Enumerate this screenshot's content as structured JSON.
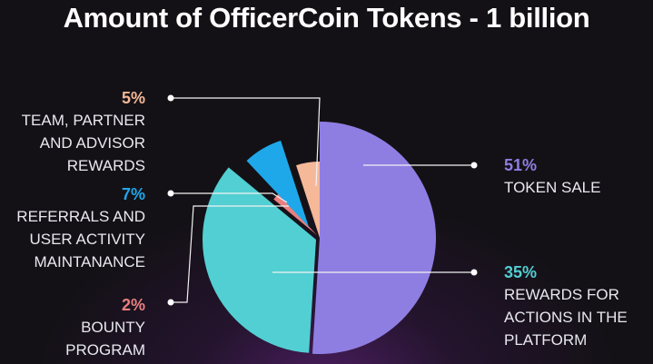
{
  "chart_data": {
    "type": "pie",
    "title": "Amount of OfficerCoin Tokens - 1 billion",
    "categories": [
      "TOKEN SALE",
      "REWARDS FOR ACTIONS IN THE PLATFORM",
      "BOUNTY PROGRAM",
      "REFERRALS AND USER ACTIVITY MAINTANANCE",
      "TEAM, PARTNER AND ADVISOR REWARDS"
    ],
    "values": [
      51,
      35,
      2,
      7,
      5
    ],
    "value_labels": [
      "51%",
      "35%",
      "2%",
      "7%",
      "5%"
    ],
    "colors": [
      "#8f7ee2",
      "#52cfd2",
      "#ea7f80",
      "#1ea8ea",
      "#f5b899"
    ]
  }
}
